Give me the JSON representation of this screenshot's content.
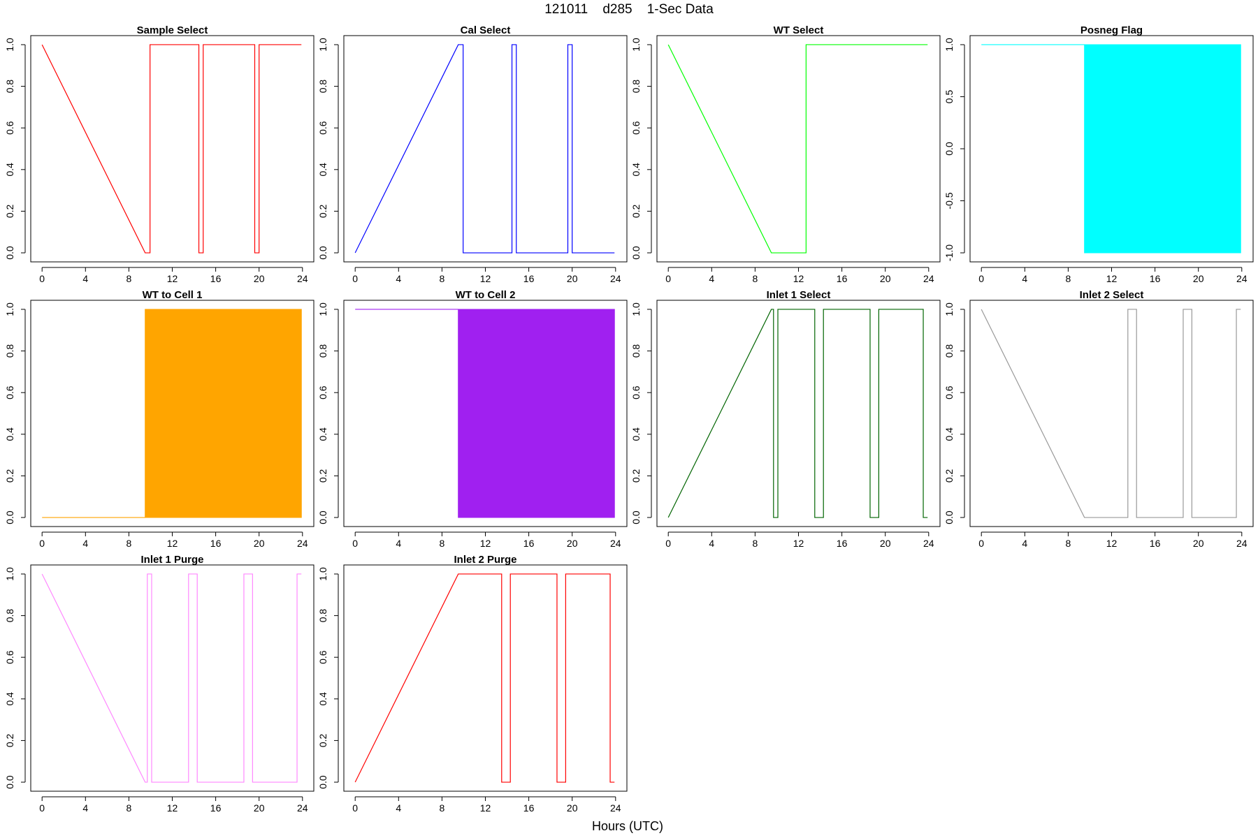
{
  "title": "121011    d285    1-Sec Data",
  "xlabel": "Hours (UTC)",
  "chart_data": [
    {
      "type": "line",
      "title": "Sample Select",
      "color": "#ff0000",
      "xlim": [
        0,
        24
      ],
      "ylim": [
        0,
        1
      ],
      "xticks": [
        0,
        4,
        8,
        12,
        16,
        20,
        24
      ],
      "yticks": [
        0.0,
        0.2,
        0.4,
        0.6,
        0.8,
        1.0
      ],
      "x": [
        0,
        9.5,
        9.95,
        9.95,
        14.45,
        14.45,
        14.85,
        14.85,
        19.6,
        19.6,
        20.0,
        20.0,
        23.9
      ],
      "y": [
        1,
        0,
        0,
        1,
        1,
        0,
        0,
        1,
        1,
        0,
        0,
        1,
        1
      ]
    },
    {
      "type": "line",
      "title": "Cal Select",
      "color": "#0000ff",
      "xlim": [
        0,
        24
      ],
      "ylim": [
        0,
        1
      ],
      "xticks": [
        0,
        4,
        8,
        12,
        16,
        20,
        24
      ],
      "yticks": [
        0.0,
        0.2,
        0.4,
        0.6,
        0.8,
        1.0
      ],
      "x": [
        0,
        9.5,
        9.95,
        9.95,
        14.45,
        14.45,
        14.85,
        14.85,
        19.6,
        19.6,
        20.0,
        20.0,
        23.9
      ],
      "y": [
        0,
        1,
        1,
        0,
        0,
        1,
        1,
        0,
        0,
        1,
        1,
        0,
        0
      ]
    },
    {
      "type": "line",
      "title": "WT Select",
      "color": "#00ff00",
      "xlim": [
        0,
        24
      ],
      "ylim": [
        0,
        1
      ],
      "xticks": [
        0,
        4,
        8,
        12,
        16,
        20,
        24
      ],
      "yticks": [
        0.0,
        0.2,
        0.4,
        0.6,
        0.8,
        1.0
      ],
      "x": [
        0,
        9.5,
        12.7,
        12.7,
        23.9
      ],
      "y": [
        1,
        0,
        0,
        1,
        1
      ]
    },
    {
      "type": "area",
      "title": "Posneg Flag",
      "color": "#00ffff",
      "xlim": [
        0,
        24
      ],
      "ylim": [
        -1,
        1
      ],
      "xticks": [
        0,
        4,
        8,
        12,
        16,
        20,
        24
      ],
      "yticks": [
        -1.0,
        -0.5,
        0.0,
        0.5,
        1.0
      ],
      "x": [
        0,
        9.5
      ],
      "y": [
        1,
        1
      ],
      "fill": {
        "x_start": 9.5,
        "x_end": 23.9,
        "y_low": -1,
        "y_high": 1
      }
    },
    {
      "type": "area",
      "title": "WT to Cell 1",
      "color": "#ffa500",
      "xlim": [
        0,
        24
      ],
      "ylim": [
        0,
        1
      ],
      "xticks": [
        0,
        4,
        8,
        12,
        16,
        20,
        24
      ],
      "yticks": [
        0.0,
        0.2,
        0.4,
        0.6,
        0.8,
        1.0
      ],
      "x": [
        0,
        9.5
      ],
      "y": [
        0,
        0
      ],
      "fill": {
        "x_start": 9.5,
        "x_end": 23.9,
        "y_low": 0,
        "y_high": 1
      }
    },
    {
      "type": "area",
      "title": "WT to Cell 2",
      "color": "#a020f0",
      "xlim": [
        0,
        24
      ],
      "ylim": [
        0,
        1
      ],
      "xticks": [
        0,
        4,
        8,
        12,
        16,
        20,
        24
      ],
      "yticks": [
        0.0,
        0.2,
        0.4,
        0.6,
        0.8,
        1.0
      ],
      "x": [
        0,
        9.5
      ],
      "y": [
        1,
        1
      ],
      "fill": {
        "x_start": 9.5,
        "x_end": 23.9,
        "y_low": 0,
        "y_high": 1
      }
    },
    {
      "type": "line",
      "title": "Inlet 1 Select",
      "color": "#006400",
      "xlim": [
        0,
        24
      ],
      "ylim": [
        0,
        1
      ],
      "xticks": [
        0,
        4,
        8,
        12,
        16,
        20,
        24
      ],
      "yticks": [
        0.0,
        0.2,
        0.4,
        0.6,
        0.8,
        1.0
      ],
      "x": [
        0,
        9.5,
        9.7,
        9.7,
        10.1,
        10.1,
        13.5,
        13.5,
        14.3,
        14.3,
        18.6,
        18.6,
        19.4,
        19.4,
        23.5,
        23.5,
        23.9
      ],
      "y": [
        0,
        1,
        1,
        0,
        0,
        1,
        1,
        0,
        0,
        1,
        1,
        0,
        0,
        1,
        1,
        0,
        0
      ]
    },
    {
      "type": "line",
      "title": "Inlet 2 Select",
      "color": "#999999",
      "xlim": [
        0,
        24
      ],
      "ylim": [
        0,
        1
      ],
      "xticks": [
        0,
        4,
        8,
        12,
        16,
        20,
        24
      ],
      "yticks": [
        0.0,
        0.2,
        0.4,
        0.6,
        0.8,
        1.0
      ],
      "x": [
        0,
        9.5,
        13.5,
        13.5,
        14.3,
        14.3,
        18.6,
        18.6,
        19.4,
        19.4,
        23.5,
        23.5,
        23.9
      ],
      "y": [
        1,
        0,
        0,
        1,
        1,
        0,
        0,
        1,
        1,
        0,
        0,
        1,
        1
      ]
    },
    {
      "type": "line",
      "title": "Inlet 1 Purge",
      "color": "#ff88ff",
      "xlim": [
        0,
        24
      ],
      "ylim": [
        0,
        1
      ],
      "xticks": [
        0,
        4,
        8,
        12,
        16,
        20,
        24
      ],
      "yticks": [
        0.0,
        0.2,
        0.4,
        0.6,
        0.8,
        1.0
      ],
      "x": [
        0,
        9.5,
        9.7,
        9.7,
        10.1,
        10.1,
        13.5,
        13.5,
        14.3,
        14.3,
        18.6,
        18.6,
        19.4,
        19.4,
        23.5,
        23.5,
        23.9
      ],
      "y": [
        1,
        0,
        0,
        1,
        1,
        0,
        0,
        1,
        1,
        0,
        0,
        1,
        1,
        0,
        0,
        1,
        1
      ]
    },
    {
      "type": "line",
      "title": "Inlet 2 Purge",
      "color": "#ff0000",
      "xlim": [
        0,
        24
      ],
      "ylim": [
        0,
        1
      ],
      "xticks": [
        0,
        4,
        8,
        12,
        16,
        20,
        24
      ],
      "yticks": [
        0.0,
        0.2,
        0.4,
        0.6,
        0.8,
        1.0
      ],
      "x": [
        0,
        9.5,
        13.5,
        13.5,
        14.3,
        14.3,
        18.6,
        18.6,
        19.4,
        19.4,
        23.5,
        23.5,
        23.9
      ],
      "y": [
        0,
        1,
        1,
        0,
        0,
        1,
        1,
        0,
        0,
        1,
        1,
        0,
        0
      ]
    }
  ]
}
